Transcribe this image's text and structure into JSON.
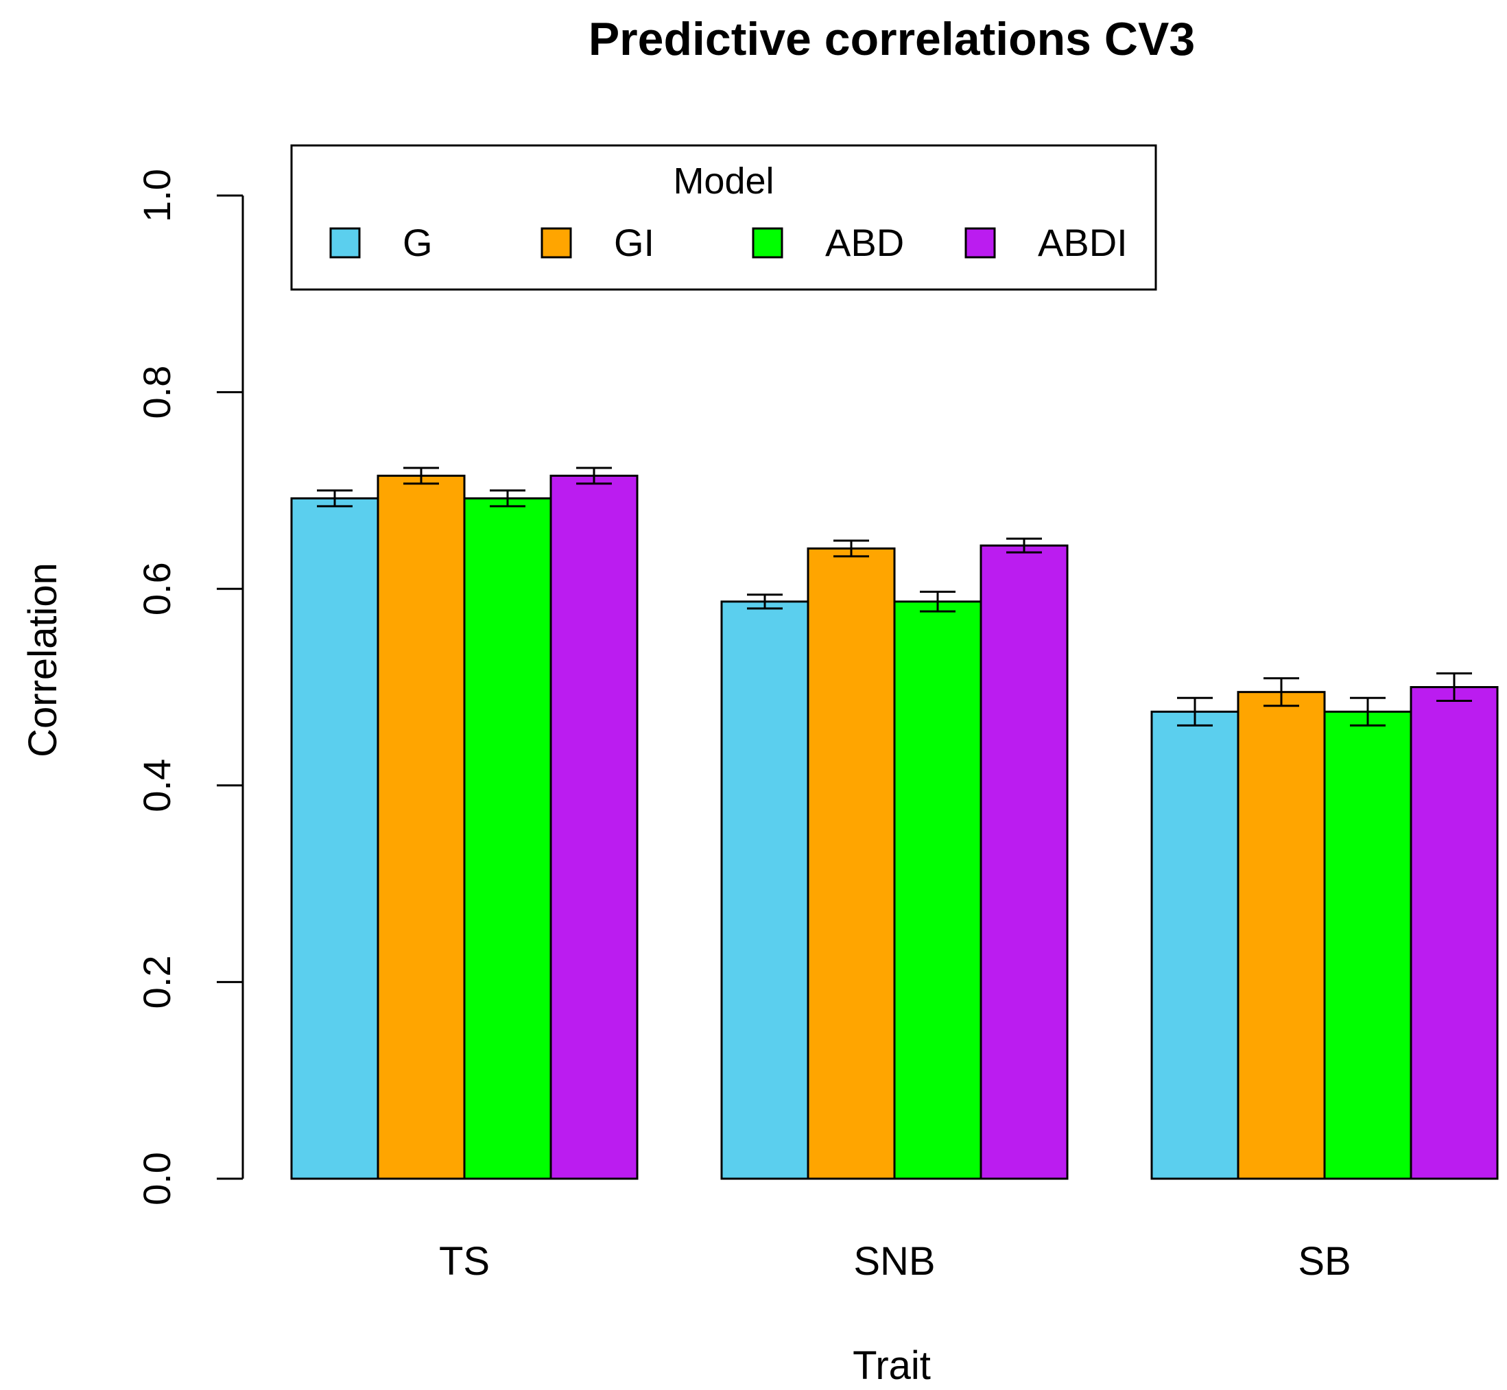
{
  "chart_data": {
    "type": "bar",
    "title": "Predictive correlations CV3",
    "xlabel": "Trait",
    "ylabel": "Correlation",
    "ylim": [
      0,
      1
    ],
    "yticks": [
      "0.0",
      "0.2",
      "0.4",
      "0.6",
      "0.8",
      "1.0"
    ],
    "categories": [
      "TS",
      "SNB",
      "SB"
    ],
    "legend": {
      "title": "Model",
      "placement": "top"
    },
    "grid": false,
    "error_bars": true,
    "series": [
      {
        "name": "G",
        "color": "#5bcfee",
        "values": [
          0.692,
          0.587,
          0.475
        ],
        "errors": [
          0.008,
          0.007,
          0.014
        ]
      },
      {
        "name": "GI",
        "color": "#ffa500",
        "values": [
          0.715,
          0.641,
          0.495
        ],
        "errors": [
          0.008,
          0.008,
          0.014
        ]
      },
      {
        "name": "ABD",
        "color": "#00ff00",
        "values": [
          0.692,
          0.587,
          0.475
        ],
        "errors": [
          0.008,
          0.01,
          0.014
        ]
      },
      {
        "name": "ABDI",
        "color": "#bb1cf0",
        "values": [
          0.715,
          0.644,
          0.5
        ],
        "errors": [
          0.008,
          0.007,
          0.014
        ]
      }
    ]
  }
}
